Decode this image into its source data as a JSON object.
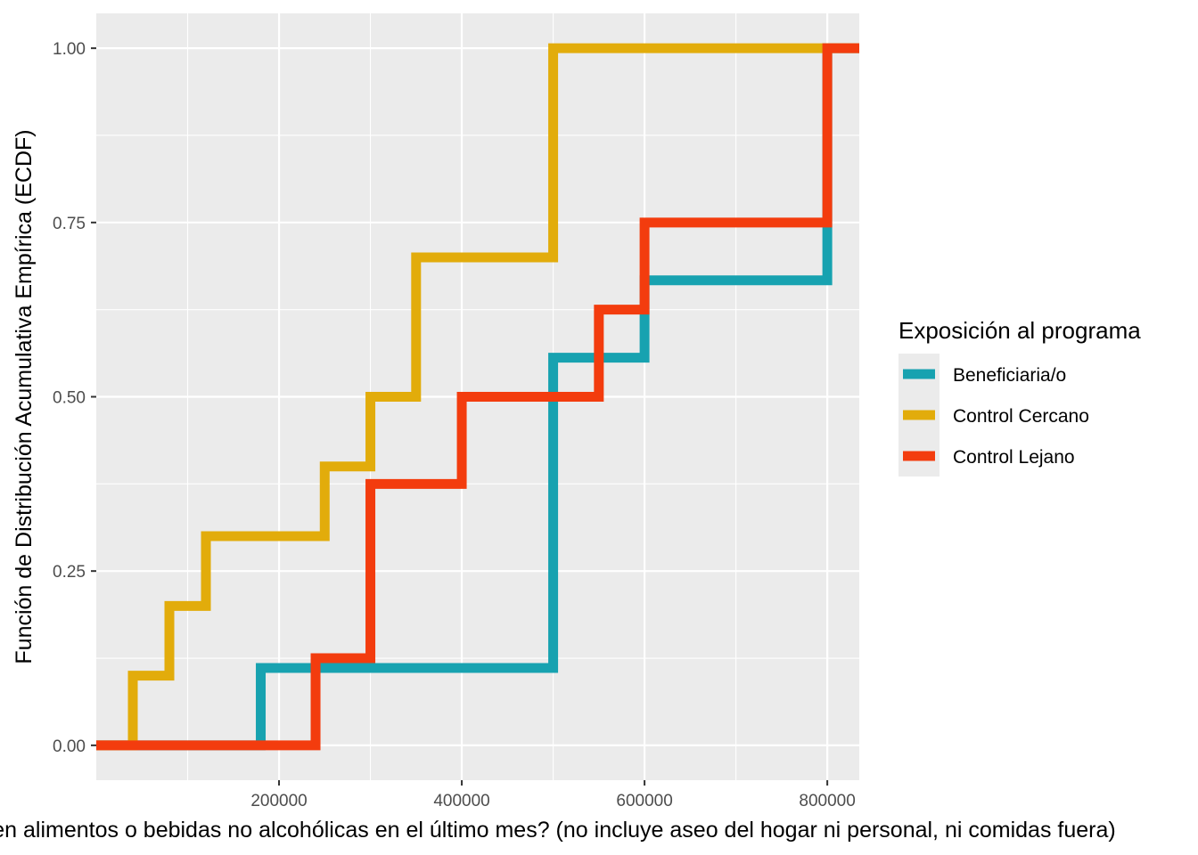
{
  "chart_data": {
    "type": "line",
    "step": true,
    "title": "",
    "xlabel": "¿Cuánto gastó en alimentos o bebidas no alcohólicas en el último mes? (no incluye aseo del hogar ni personal, ni comidas fuera)",
    "ylabel": "Función de Distribución Acumulativa Empírica (ECDF)",
    "xlim": [
      0,
      835000
    ],
    "ylim": [
      -0.05,
      1.05
    ],
    "x_ticks": [
      200000,
      400000,
      600000,
      800000
    ],
    "x_tick_labels": [
      "200000",
      "400000",
      "600000",
      "800000"
    ],
    "y_ticks": [
      0,
      0.25,
      0.5,
      0.75,
      1
    ],
    "y_tick_labels": [
      "0.00",
      "0.25",
      "0.50",
      "0.75",
      "1.00"
    ],
    "grid": true,
    "legend_title": "Exposición al programa",
    "legend_position": "right",
    "series": [
      {
        "name": "Beneficiaria/o",
        "color": "#17A2B0",
        "points": [
          [
            0,
            0
          ],
          [
            180000,
            0.111
          ],
          [
            500000,
            0.556
          ],
          [
            600000,
            0.667
          ],
          [
            800000,
            1.0
          ],
          [
            835000,
            1.0
          ]
        ]
      },
      {
        "name": "Control Cercano",
        "color": "#E2AC0B",
        "points": [
          [
            0,
            0
          ],
          [
            40000,
            0.1
          ],
          [
            80000,
            0.2
          ],
          [
            120000,
            0.3
          ],
          [
            250000,
            0.4
          ],
          [
            300000,
            0.5
          ],
          [
            350000,
            0.7
          ],
          [
            500000,
            1.0
          ],
          [
            835000,
            1.0
          ]
        ]
      },
      {
        "name": "Control Lejano",
        "color": "#F33C0E",
        "points": [
          [
            0,
            0
          ],
          [
            240000,
            0.125
          ],
          [
            300000,
            0.375
          ],
          [
            400000,
            0.5
          ],
          [
            550000,
            0.625
          ],
          [
            600000,
            0.75
          ],
          [
            800000,
            1.0
          ],
          [
            835000,
            1.0
          ]
        ]
      }
    ]
  }
}
